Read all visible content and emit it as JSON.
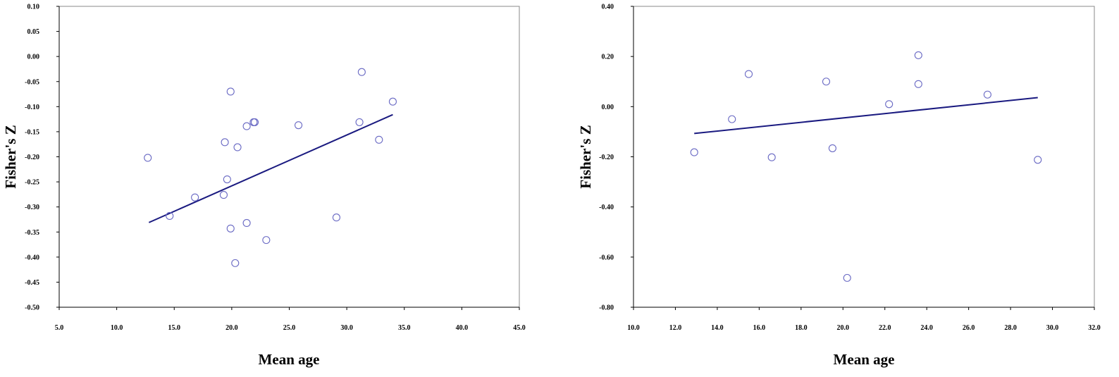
{
  "colors": {
    "marker": "#6a6ac4",
    "fit_line": "#1a1a80",
    "frame": "#888888"
  },
  "chart_data": [
    {
      "type": "scatter",
      "title": "",
      "xlabel": "Mean age",
      "ylabel": "Fisher's Z",
      "xlim": [
        5.0,
        45.0
      ],
      "ylim": [
        -0.5,
        0.1
      ],
      "xticks": [
        5.0,
        10.0,
        15.0,
        20.0,
        25.0,
        30.0,
        35.0,
        40.0,
        45.0
      ],
      "yticks": [
        0.1,
        0.05,
        0.0,
        -0.05,
        -0.1,
        -0.15,
        -0.2,
        -0.25,
        -0.3,
        -0.35,
        -0.4,
        -0.45,
        -0.5
      ],
      "xtick_labels": [
        "5.0",
        "10.0",
        "15.0",
        "20.0",
        "25.0",
        "30.0",
        "35.0",
        "40.0",
        "45.0"
      ],
      "ytick_labels": [
        "0.10",
        "0.05",
        "0.00",
        "-0.05",
        "-0.10",
        "-0.15",
        "-0.20",
        "-0.25",
        "-0.30",
        "-0.35",
        "-0.40",
        "-0.45",
        "-0.50"
      ],
      "grid": false,
      "points": [
        {
          "x": 12.7,
          "y": -0.202
        },
        {
          "x": 14.6,
          "y": -0.318
        },
        {
          "x": 16.8,
          "y": -0.281
        },
        {
          "x": 19.3,
          "y": -0.276
        },
        {
          "x": 19.4,
          "y": -0.171
        },
        {
          "x": 19.6,
          "y": -0.245
        },
        {
          "x": 19.9,
          "y": -0.07
        },
        {
          "x": 19.9,
          "y": -0.343
        },
        {
          "x": 20.3,
          "y": -0.412
        },
        {
          "x": 20.5,
          "y": -0.181
        },
        {
          "x": 21.3,
          "y": -0.139
        },
        {
          "x": 21.3,
          "y": -0.332
        },
        {
          "x": 21.9,
          "y": -0.131
        },
        {
          "x": 22.0,
          "y": -0.131
        },
        {
          "x": 23.0,
          "y": -0.366
        },
        {
          "x": 25.8,
          "y": -0.137
        },
        {
          "x": 29.1,
          "y": -0.321
        },
        {
          "x": 31.1,
          "y": -0.131
        },
        {
          "x": 31.3,
          "y": -0.031
        },
        {
          "x": 32.8,
          "y": -0.166
        },
        {
          "x": 34.0,
          "y": -0.09
        }
      ],
      "fit_line": {
        "x": [
          12.8,
          34.0
        ],
        "y": [
          -0.331,
          -0.116
        ]
      }
    },
    {
      "type": "scatter",
      "title": "",
      "xlabel": "Mean age",
      "ylabel": "Fisher's Z",
      "xlim": [
        10.0,
        32.0
      ],
      "ylim": [
        -0.8,
        0.4
      ],
      "xticks": [
        10.0,
        12.0,
        14.0,
        16.0,
        18.0,
        20.0,
        22.0,
        24.0,
        26.0,
        28.0,
        30.0,
        32.0
      ],
      "yticks": [
        0.4,
        0.2,
        0.0,
        -0.2,
        -0.4,
        -0.6,
        -0.8
      ],
      "xtick_labels": [
        "10.0",
        "12.0",
        "14.0",
        "16.0",
        "18.0",
        "20.0",
        "22.0",
        "24.0",
        "26.0",
        "28.0",
        "30.0",
        "32.0"
      ],
      "ytick_labels": [
        "0.40",
        "0.20",
        "0.00",
        "-0.20",
        "-0.40",
        "-0.60",
        "-0.80"
      ],
      "grid": false,
      "points": [
        {
          "x": 12.9,
          "y": -0.182
        },
        {
          "x": 14.7,
          "y": -0.05
        },
        {
          "x": 15.5,
          "y": 0.13
        },
        {
          "x": 16.6,
          "y": -0.202
        },
        {
          "x": 19.2,
          "y": 0.1
        },
        {
          "x": 19.5,
          "y": -0.166
        },
        {
          "x": 20.2,
          "y": -0.683
        },
        {
          "x": 22.2,
          "y": 0.01
        },
        {
          "x": 23.6,
          "y": 0.205
        },
        {
          "x": 23.6,
          "y": 0.09
        },
        {
          "x": 26.9,
          "y": 0.048
        },
        {
          "x": 29.3,
          "y": -0.212
        }
      ],
      "fit_line": {
        "x": [
          12.9,
          29.3
        ],
        "y": [
          -0.107,
          0.036
        ]
      }
    }
  ]
}
